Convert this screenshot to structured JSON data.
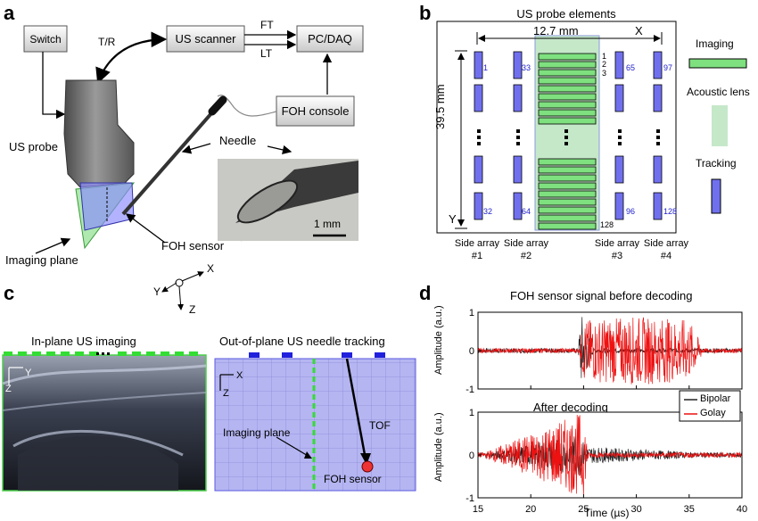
{
  "panel_a": {
    "letter": "a",
    "switch_label": "Switch",
    "tr_label": "T/R",
    "us_scanner_label": "US scanner",
    "ft_label": "FT",
    "lt_label": "LT",
    "pc_daq_label": "PC/DAQ",
    "foh_console_label": "FOH console",
    "needle_label": "Needle",
    "us_probe_label": "US probe",
    "foh_sensor_label": "FOH sensor",
    "imaging_plane_label": "Imaging plane",
    "scale_label": "1 mm"
  },
  "panel_b": {
    "letter": "b",
    "title": "US probe elements",
    "width_label": "12.7 mm",
    "x_label": "X",
    "height_label": "39.5 mm",
    "y_label": "Y",
    "el_1": "1",
    "el_2": "2",
    "el_3": "3",
    "el_128_center": "128",
    "side_nums": [
      "1",
      "32",
      "33",
      "64",
      "65",
      "96",
      "97",
      "128"
    ],
    "side_array_labels": [
      "Side array",
      "Side array",
      "Side array",
      "Side array"
    ],
    "side_array_nums": [
      "#1",
      "#2",
      "#3",
      "#4"
    ],
    "legend_imaging": "Imaging",
    "legend_lens": "Acoustic lens",
    "legend_tracking": "Tracking",
    "colors": {
      "imaging": "#7ee07e",
      "tracking": "#7070ee",
      "lens": "#cde9d3"
    }
  },
  "axes_center": {
    "x": "X",
    "y": "Y",
    "z": "Z"
  },
  "panel_c": {
    "letter": "c",
    "title_left": "In-plane US imaging",
    "left_y": "Y",
    "left_z": "Z",
    "title_right": "Out-of-plane US needle tracking",
    "right_x": "X",
    "right_z": "Z",
    "imaging_plane_label": "Imaging plane",
    "tof_label": "TOF",
    "foh_sensor_label": "FOH sensor"
  },
  "panel_d": {
    "letter": "d",
    "title_top": "FOH sensor signal before decoding",
    "title_bottom": "After decoding",
    "ylabel": "Amplitude (a.u.)",
    "xlabel": "Time (µs)",
    "yticks": [
      "1",
      "0",
      "-1"
    ],
    "xticks": [
      "15",
      "20",
      "25",
      "30",
      "35",
      "40"
    ],
    "legend": [
      {
        "name": "Bipolar",
        "color": "#222222"
      },
      {
        "name": "Golay",
        "color": "#ee1111"
      }
    ]
  },
  "chart_data": [
    {
      "type": "line",
      "title": "FOH sensor signal before decoding",
      "xlabel": "",
      "ylabel": "Amplitude (a.u.)",
      "xlim": [
        15,
        40
      ],
      "ylim": [
        -1,
        1
      ],
      "series": [
        {
          "name": "Bipolar",
          "x": [
            15,
            24.5,
            24.7,
            25.0,
            25.5,
            26,
            40
          ],
          "values": [
            0,
            0,
            1,
            -0.9,
            0.4,
            0,
            0
          ]
        },
        {
          "name": "Golay",
          "x": [
            15,
            24.6,
            25,
            30,
            35,
            36.5,
            40
          ],
          "values": [
            0,
            0,
            0.8,
            0.9,
            0.8,
            0,
            0
          ]
        }
      ]
    },
    {
      "type": "line",
      "title": "After decoding",
      "xlabel": "Time (µs)",
      "ylabel": "Amplitude (a.u.)",
      "xlim": [
        15,
        40
      ],
      "ylim": [
        -1,
        1
      ],
      "series": [
        {
          "name": "Bipolar",
          "x": [
            15,
            24.7,
            25,
            25.3,
            40
          ],
          "values": [
            0,
            0.5,
            -0.3,
            0.2,
            0
          ]
        },
        {
          "name": "Golay",
          "x": [
            15,
            24.8,
            25.0,
            25.2,
            25.5,
            40
          ],
          "values": [
            0,
            1,
            -0.95,
            0.6,
            0,
            0
          ]
        }
      ]
    }
  ]
}
